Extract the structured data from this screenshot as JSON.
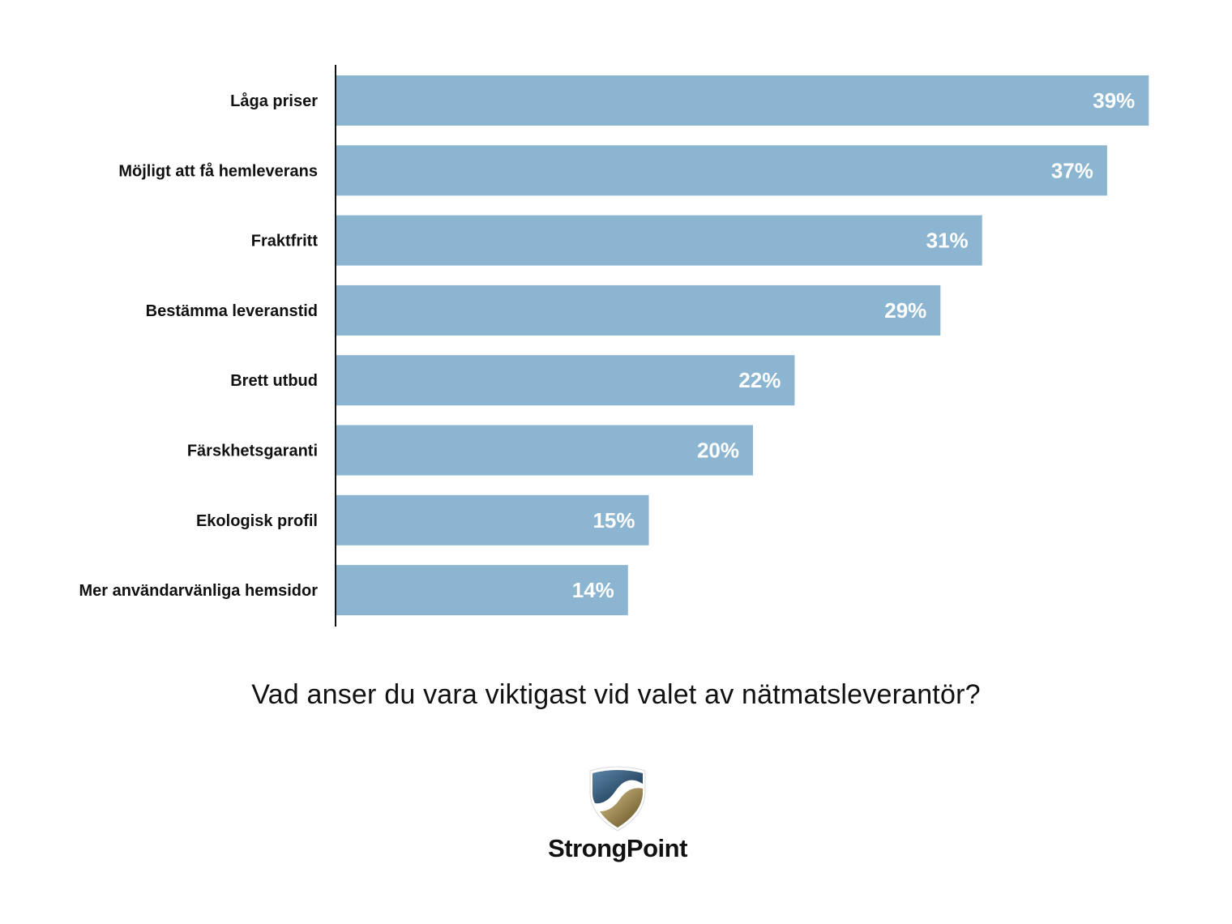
{
  "chart_data": {
    "type": "bar",
    "orientation": "horizontal",
    "categories": [
      "Låga priser",
      "Möjligt att få hemleverans",
      "Fraktfritt",
      "Bestämma leveranstid",
      "Brett utbud",
      "Färskhetsgaranti",
      "Ekologisk profil",
      "Mer användarvänliga hemsidor"
    ],
    "values": [
      39,
      37,
      31,
      29,
      22,
      20,
      15,
      14
    ],
    "value_labels": [
      "39%",
      "37%",
      "31%",
      "29%",
      "22%",
      "20%",
      "15%",
      "14%"
    ],
    "unit": "%",
    "bar_color": "#8BB5D0",
    "title": "Vad anser du vara viktigast vid valet av nätmatsleverantör?",
    "xlabel": "",
    "ylabel": "",
    "xlim": [
      0,
      39
    ],
    "grid": false,
    "legend": "none"
  },
  "question": "Vad anser du vara viktigast vid valet av nätmatsleverantör?",
  "logo": {
    "text": "StrongPoint",
    "icon": "shield-logo-icon"
  }
}
